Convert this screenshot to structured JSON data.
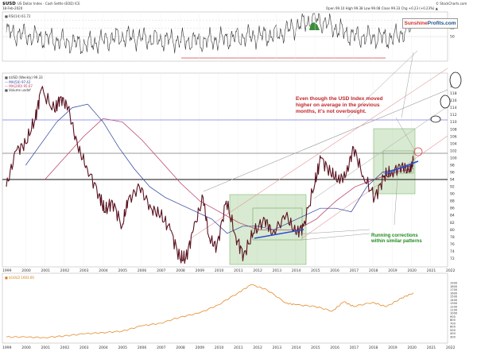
{
  "header": {
    "symbol": "$USD",
    "title": "US Dollar Index - Cash Settle (EOD) ICE",
    "date": "18-Feb-2020",
    "quote": "Open 99.10  High 99.38  Low 99.08  Close 99.33  Chg +0.23 (+0.23%) ▲",
    "credit": "© StockCharts.com",
    "logo_part1": "Sunshine",
    "logo_part2": "Profits.com"
  },
  "legend": {
    "rsi": "■ RSI(14) 61.72",
    "price": "■ $USD (Weekly) 99.33",
    "ma1": "— MA(50) 97.42",
    "ma2": "— MA(200) 95.67",
    "volume": "■ Volume undef",
    "gold": "■ $GOLD 1603.60"
  },
  "annotations": {
    "red_lines": [
      "Even though the USD Index moved",
      "higher on average in the previous",
      "months, it's not overbought."
    ],
    "green_lines": [
      "Running corrections",
      "within similar patterns"
    ]
  },
  "chart_data": [
    {
      "type": "line",
      "name": "RSI panel",
      "y_ticks": [
        70,
        60,
        50
      ],
      "ylim": [
        20,
        80
      ],
      "x": [
        1999,
        2001,
        2003,
        2005,
        2007,
        2009,
        2011,
        2013,
        2015,
        2017,
        2019,
        2020.1
      ],
      "values": [
        55,
        48,
        40,
        50,
        46,
        44,
        49,
        52,
        72,
        50,
        48,
        62
      ]
    },
    {
      "type": "line",
      "name": "$USD weekly",
      "x_ticks": [
        "1999",
        "2000",
        "2001",
        "2002",
        "2003",
        "2004",
        "2005",
        "2006",
        "2007",
        "2008",
        "2009",
        "2010",
        "2011",
        "2012",
        "2013",
        "2014",
        "2015",
        "2016",
        "2017",
        "2018",
        "2019",
        "2020",
        "2021",
        "2022"
      ],
      "y_ticks": [
        120,
        118,
        116,
        114,
        112,
        110,
        108,
        106,
        104,
        102,
        100,
        98,
        96,
        94,
        92,
        90,
        88,
        86,
        84,
        82,
        80,
        78,
        76,
        74,
        72
      ],
      "ylim": [
        71,
        121
      ],
      "x": [
        1999.0,
        1999.5,
        2000.0,
        2000.5,
        2000.8,
        2001.5,
        2001.8,
        2002.2,
        2002.7,
        2003.2,
        2003.8,
        2004.1,
        2004.5,
        2005.0,
        2005.3,
        2005.9,
        2006.5,
        2007.0,
        2007.5,
        2008.0,
        2008.3,
        2008.7,
        2009.2,
        2009.5,
        2009.9,
        2010.4,
        2010.9,
        2011.3,
        2011.8,
        2012.4,
        2012.8,
        2013.5,
        2014.0,
        2014.4,
        2015.0,
        2015.3,
        2015.8,
        2016.2,
        2016.6,
        2017.0,
        2017.5,
        2018.1,
        2018.6,
        2019.0,
        2019.5,
        2019.9,
        2020.1
      ],
      "values": [
        92,
        102,
        104,
        111,
        119,
        113,
        117,
        114,
        103,
        97,
        90,
        85,
        88,
        81,
        88,
        92,
        86,
        84,
        80,
        72,
        72,
        80,
        89,
        78,
        75,
        88,
        78,
        73,
        79,
        83,
        79,
        84,
        79,
        81,
        93,
        100,
        96,
        94,
        95,
        103,
        95,
        89,
        95,
        96,
        98,
        96,
        99.33
      ],
      "ma50": [
        98,
        104,
        110,
        114,
        115,
        110,
        103,
        97,
        92,
        89,
        87,
        85,
        83,
        79,
        81,
        81,
        80,
        82,
        84,
        86,
        86,
        85,
        92,
        96,
        97,
        98
      ],
      "ma200": [
        94,
        100,
        106,
        111,
        110,
        105,
        99,
        93,
        88,
        85,
        82,
        80,
        80,
        80,
        83,
        88,
        92,
        94,
        96,
        97
      ]
    },
    {
      "type": "line",
      "name": "$GOLD",
      "y_ticks": [
        1900,
        1800,
        1700,
        1600,
        1500,
        1400,
        1300,
        1200,
        1100,
        1000,
        900,
        800,
        700,
        600,
        500,
        400,
        300
      ],
      "ylim": [
        200,
        2000
      ],
      "x": [
        1999,
        2000,
        2001,
        2002,
        2003,
        2004,
        2005,
        2006,
        2007,
        2008,
        2009,
        2010,
        2011,
        2011.7,
        2012.5,
        2013.5,
        2014,
        2015,
        2015.9,
        2016.5,
        2017,
        2018,
        2018.7,
        2019.5,
        2020.1
      ],
      "values": [
        290,
        285,
        270,
        320,
        380,
        420,
        460,
        620,
        700,
        880,
        1000,
        1250,
        1600,
        1850,
        1700,
        1300,
        1250,
        1200,
        1060,
        1340,
        1200,
        1320,
        1190,
        1450,
        1603.6
      ]
    }
  ]
}
